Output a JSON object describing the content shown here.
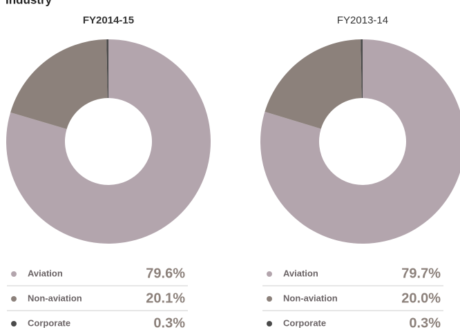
{
  "title": "Industry",
  "chart_data": [
    {
      "type": "pie",
      "title": "FY2014-15",
      "categories": [
        "Aviation",
        "Non-aviation",
        "Corporate"
      ],
      "values": [
        79.6,
        20.1,
        0.3
      ],
      "value_labels": [
        "79.6%",
        "20.1%",
        "0.3%"
      ],
      "colors": [
        "#b3a5ad",
        "#8c817b",
        "#4a4a4a"
      ]
    },
    {
      "type": "pie",
      "title": "FY2013-14",
      "categories": [
        "Aviation",
        "Non-aviation",
        "Corporate"
      ],
      "values": [
        79.7,
        20.0,
        0.3
      ],
      "value_labels": [
        "79.7%",
        "20.0%",
        "0.3%"
      ],
      "colors": [
        "#b3a5ad",
        "#8c817b",
        "#4a4a4a"
      ]
    }
  ]
}
